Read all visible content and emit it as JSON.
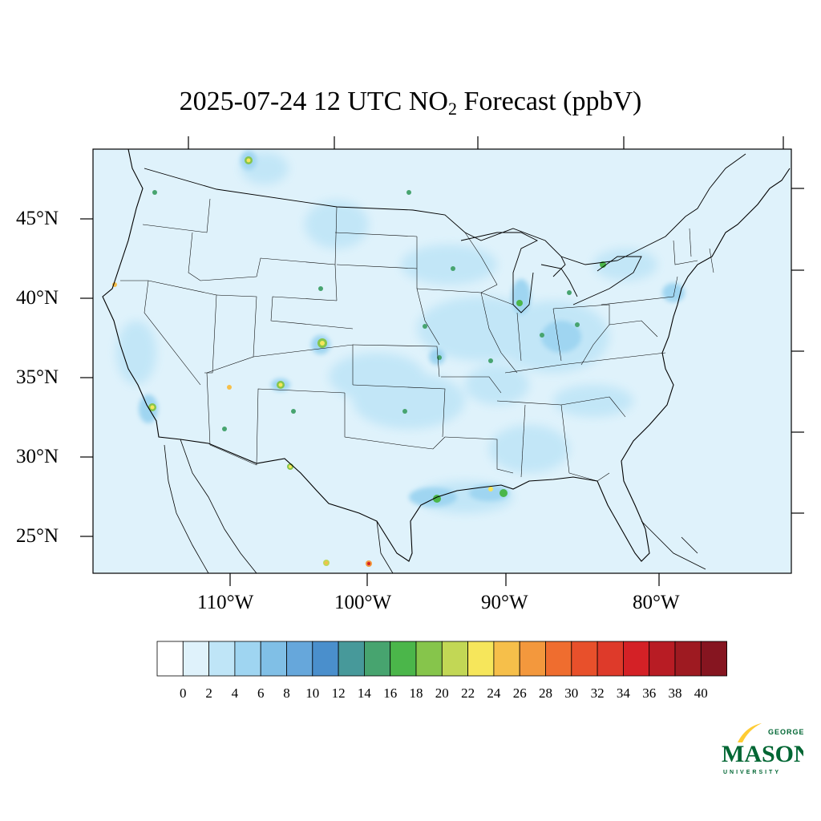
{
  "title": {
    "prefix": "2025-07-24 12 UTC NO",
    "subscript": "2",
    "suffix": " Forecast (ppbV)"
  },
  "lat_labels": [
    "45°N",
    "40°N",
    "35°N",
    "30°N",
    "25°N"
  ],
  "lon_labels": [
    "110°W",
    "100°W",
    "90°W",
    "80°W"
  ],
  "colorbar": {
    "ticks": [
      "0",
      "2",
      "4",
      "6",
      "8",
      "10",
      "12",
      "14",
      "16",
      "18",
      "20",
      "22",
      "24",
      "26",
      "28",
      "30",
      "32",
      "34",
      "36",
      "38",
      "40"
    ],
    "colors": [
      "#ffffff",
      "#dff2fb",
      "#bfe5f7",
      "#9fd5f1",
      "#80bfe6",
      "#66a7db",
      "#4a8fcc",
      "#47999a",
      "#47a46f",
      "#4bb64a",
      "#86c54b",
      "#c2d755",
      "#f6e65b",
      "#f6bf4a",
      "#f3983d",
      "#ef6d2f",
      "#e8502b",
      "#de3a2a",
      "#d42126",
      "#b81c24",
      "#9e1a21",
      "#861520"
    ]
  },
  "logo": {
    "top": "GEORGE",
    "main": "MASON",
    "bottom": "UNIVERSITY",
    "green": "#006633",
    "gold": "#FFCC33"
  }
}
